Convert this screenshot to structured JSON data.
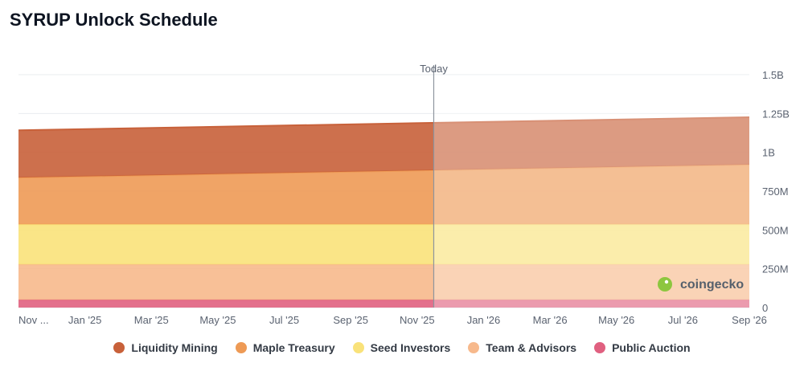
{
  "title": "SYRUP Unlock Schedule",
  "watermark": "coingecko",
  "chart_data": {
    "type": "area",
    "stacked": true,
    "title": "SYRUP Unlock Schedule",
    "xlabel": "",
    "ylabel": "",
    "x_ticks": [
      "Nov ...",
      "Jan '25",
      "Mar '25",
      "May '25",
      "Jul '25",
      "Sep '25",
      "Nov '25",
      "Jan '26",
      "Mar '26",
      "May '26",
      "Jul '26",
      "Sep '26"
    ],
    "y_ticks": [
      "0",
      "250M",
      "500M",
      "750M",
      "1B",
      "1.25B",
      "1.5B"
    ],
    "ylim": [
      0,
      1500
    ],
    "y_unit": "M",
    "x_index_range": [
      0,
      22
    ],
    "today_index": 12.5,
    "today_label": "Today",
    "legend_position": "bottom",
    "series": [
      {
        "name": "Public Auction",
        "color": "#e06080",
        "x": [
          0,
          22
        ],
        "values": [
          50,
          50
        ]
      },
      {
        "name": "Team & Advisors",
        "color": "#f7b98c",
        "x": [
          0,
          22
        ],
        "values": [
          228,
          228
        ]
      },
      {
        "name": "Seed Investors",
        "color": "#f9e27a",
        "x": [
          0,
          22
        ],
        "values": [
          258,
          258
        ]
      },
      {
        "name": "Maple Treasury",
        "color": "#ee9a55",
        "x": [
          0,
          22
        ],
        "values": [
          301,
          385
        ]
      },
      {
        "name": "Liquidity Mining",
        "color": "#c8613a",
        "x": [
          0,
          22
        ],
        "values": [
          305,
          305
        ]
      }
    ]
  },
  "legend": [
    {
      "label": "Liquidity Mining",
      "color": "#c8613a"
    },
    {
      "label": "Maple Treasury",
      "color": "#ee9a55"
    },
    {
      "label": "Seed Investors",
      "color": "#f9e27a"
    },
    {
      "label": "Team & Advisors",
      "color": "#f7b98c"
    },
    {
      "label": "Public Auction",
      "color": "#e06080"
    }
  ]
}
